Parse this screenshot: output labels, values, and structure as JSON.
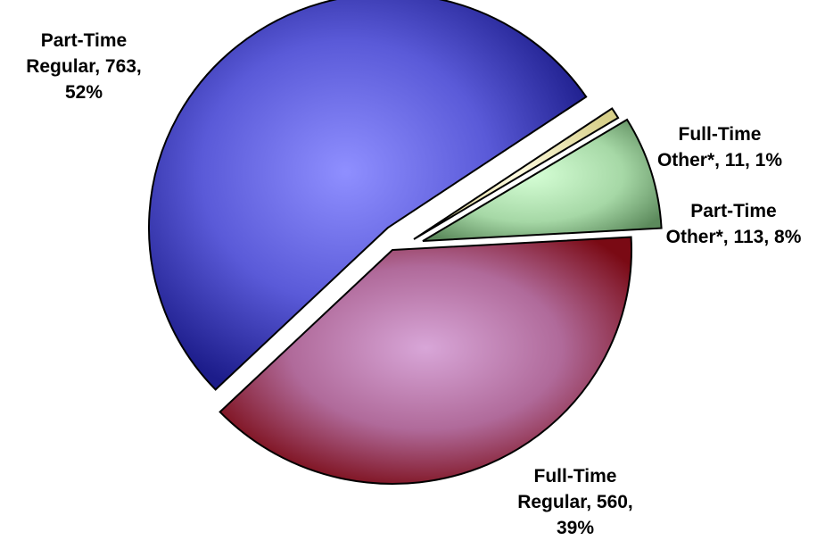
{
  "chart_data": {
    "type": "pie",
    "title": "",
    "slices": [
      {
        "category": "Part-Time Regular",
        "value": 763,
        "percent": "52%",
        "color": "#6a6ae6",
        "label_lines": [
          "Part-Time",
          "Regular, 763,",
          "52%"
        ]
      },
      {
        "category": "Full-Time Other*",
        "value": 11,
        "percent": "1%",
        "color": "#f4f0a8",
        "label_lines": [
          "Full-Time",
          "Other*, 11, 1%"
        ]
      },
      {
        "category": "Part-Time Other*",
        "value": 113,
        "percent": "8%",
        "color": "#a8dca8",
        "label_lines": [
          "Part-Time",
          "Other*, 113, 8%"
        ]
      },
      {
        "category": "Full-Time Regular",
        "value": 560,
        "percent": "39%",
        "color": "#b06a9a",
        "label_lines": [
          "Full-Time",
          "Regular, 560,",
          "39%"
        ]
      }
    ],
    "legend": "none",
    "exploded": true
  }
}
